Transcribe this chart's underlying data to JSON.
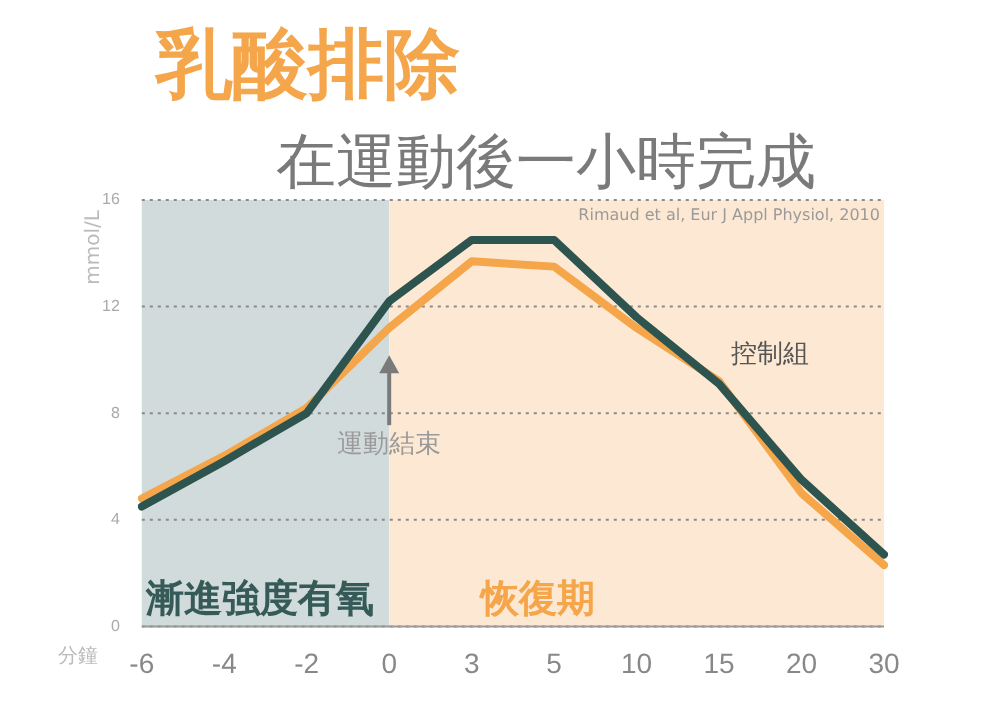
{
  "chart_data": {
    "type": "line",
    "title": "乳酸排除",
    "subtitle": "在運動後一小時完成",
    "xlabel": "分鐘",
    "ylabel": "mmol/L",
    "categories": [
      "-6",
      "-4",
      "-2",
      "0",
      "3",
      "5",
      "10",
      "15",
      "20",
      "30"
    ],
    "series": [
      {
        "name": "控制組",
        "color": "#2e5450",
        "values": [
          4.5,
          6.2,
          8.0,
          12.2,
          14.5,
          14.5,
          11.6,
          9.1,
          5.5,
          2.7
        ]
      },
      {
        "color": "#f5a54a",
        "values": [
          4.8,
          6.4,
          8.2,
          11.2,
          13.7,
          13.5,
          11.2,
          9.2,
          5.0,
          2.3
        ]
      }
    ],
    "ylim": [
      0,
      16
    ],
    "yticks": [
      0,
      4,
      8,
      12,
      16
    ],
    "grid": "y",
    "legend": false,
    "marker": "none",
    "line_style": "solid",
    "bands": [
      {
        "axis": "x",
        "from": "-6",
        "to": "0",
        "label": "漸進強度有氧",
        "color": "#d2dbdb"
      },
      {
        "axis": "x",
        "from": "0",
        "to": "30",
        "label": "恢復期",
        "color": "#fde9d3"
      }
    ],
    "annotations": [
      {
        "text": "運動結束",
        "x": "0",
        "y": 6.8
      },
      "Rimaud et al, Eur J Appl Physiol, 2010"
    ]
  }
}
